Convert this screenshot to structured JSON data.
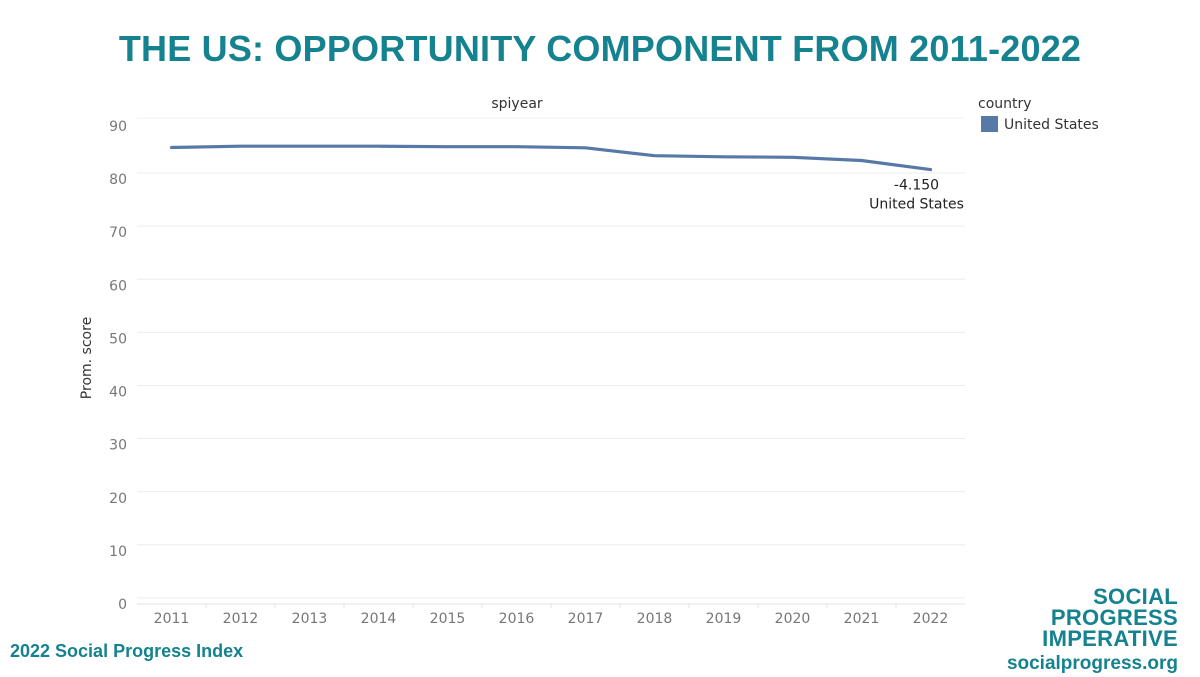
{
  "title": "THE US: OPPORTUNITY COMPONENT FROM 2011-2022",
  "footer": "2022 Social Progress Index",
  "brand": {
    "line1": "SOCIAL",
    "line2": "PROGRESS",
    "line3": "IMPERATIVE",
    "site": "socialprogress.org"
  },
  "colors": {
    "title": "#15828f",
    "series": "#5779a8",
    "axis_text": "#777777",
    "grid": "#ececec"
  },
  "chart_data": {
    "type": "line",
    "title": "",
    "column_header": "spiyear",
    "ylabel": "Prom. score",
    "xlabel": "",
    "ylim": [
      0,
      90
    ],
    "yticks": [
      0,
      10,
      20,
      30,
      40,
      50,
      60,
      70,
      80,
      90
    ],
    "categories": [
      "2011",
      "2012",
      "2013",
      "2014",
      "2015",
      "2016",
      "2017",
      "2018",
      "2019",
      "2020",
      "2021",
      "2022"
    ],
    "legend": {
      "title": "country",
      "position": "right"
    },
    "series": [
      {
        "name": "United States",
        "color": "#5779a8",
        "values": [
          85.95,
          86.2,
          86.2,
          86.2,
          86.1,
          86.1,
          85.9,
          84.4,
          84.2,
          84.1,
          83.5,
          81.8
        ]
      }
    ],
    "annotation": {
      "value": "-4.150",
      "label": "United States",
      "category": "2022"
    }
  }
}
